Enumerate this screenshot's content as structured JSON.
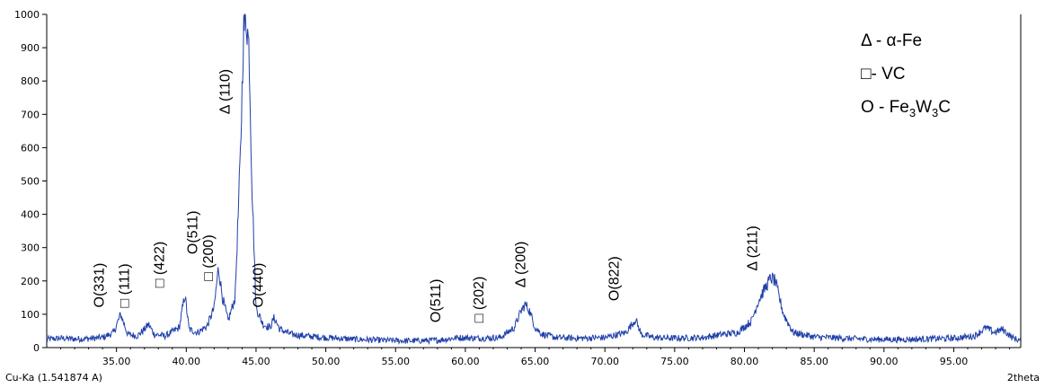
{
  "chart_data": {
    "type": "line",
    "xlabel": "2theta",
    "source_label": "Cu-Ka (1.541874 A)",
    "xlim": [
      30.0,
      99.8
    ],
    "ylim": [
      0,
      1000
    ],
    "grid": false,
    "line_color": "#1f3fa8",
    "x_ticks": [
      "35.00",
      "40.00",
      "45.00",
      "50.00",
      "55.00",
      "60.00",
      "65.00",
      "70.00",
      "75.00",
      "80.00",
      "85.00",
      "90.00",
      "95.00"
    ],
    "x_tick_values": [
      35,
      40,
      45,
      50,
      55,
      60,
      65,
      70,
      75,
      80,
      85,
      90,
      95
    ],
    "y_ticks": [
      "0",
      "100",
      "200",
      "300",
      "400",
      "500",
      "600",
      "700",
      "800",
      "900",
      "1000"
    ],
    "y_tick_values": [
      0,
      100,
      200,
      300,
      400,
      500,
      600,
      700,
      800,
      900,
      1000
    ],
    "series": [
      {
        "x": [
          30.0,
          31.0,
          32.0,
          33.0,
          34.0,
          34.8,
          35.3,
          35.8,
          36.5,
          37.0,
          37.3,
          37.7,
          38.5,
          39.5,
          39.9,
          40.2,
          40.8,
          41.5,
          42.0,
          42.3,
          42.6,
          43.0,
          43.5,
          43.9,
          44.1,
          44.3,
          44.5,
          44.7,
          45.0,
          45.5,
          46.0,
          46.3,
          46.7,
          47.5,
          48.5,
          50.0,
          52.0,
          54.0,
          56.0,
          58.0,
          59.5,
          61.0,
          62.5,
          63.5,
          64.0,
          64.3,
          64.6,
          65.0,
          65.5,
          66.5,
          68.0,
          70.0,
          71.5,
          72.2,
          72.6,
          73.5,
          75.0,
          77.0,
          78.5,
          79.5,
          80.5,
          81.0,
          81.5,
          81.9,
          82.2,
          82.8,
          83.5,
          85.0,
          87.0,
          89.0,
          91.0,
          93.0,
          95.0,
          96.5,
          97.3,
          97.9,
          98.5,
          99.2,
          99.8
        ],
        "y": [
          25,
          28,
          26,
          27,
          30,
          45,
          100,
          40,
          35,
          55,
          70,
          40,
          35,
          60,
          160,
          55,
          45,
          65,
          120,
          240,
          150,
          80,
          150,
          600,
          950,
          990,
          900,
          500,
          120,
          70,
          60,
          90,
          55,
          40,
          35,
          30,
          25,
          22,
          20,
          22,
          30,
          28,
          30,
          60,
          110,
          130,
          110,
          60,
          40,
          30,
          28,
          30,
          45,
          85,
          40,
          30,
          28,
          30,
          40,
          45,
          80,
          140,
          180,
          210,
          200,
          100,
          45,
          32,
          28,
          25,
          24,
          26,
          28,
          35,
          60,
          45,
          55,
          30,
          20
        ]
      }
    ],
    "annotations": [
      {
        "text": "Δ (110)",
        "x": 43.1,
        "y": 700
      },
      {
        "text": "O(331)",
        "x": 34.1,
        "y": 120
      },
      {
        "text": "□ (111)",
        "x": 35.9,
        "y": 120
      },
      {
        "text": "□ (422)",
        "x": 38.4,
        "y": 180
      },
      {
        "text": "O(511)",
        "x": 40.8,
        "y": 280
      },
      {
        "text": "□ (200)",
        "x": 41.9,
        "y": 200
      },
      {
        "text": "O(440)",
        "x": 45.5,
        "y": 120
      },
      {
        "text": "O(511)",
        "x": 58.2,
        "y": 75
      },
      {
        "text": "□ (202)",
        "x": 61.3,
        "y": 75
      },
      {
        "text": "Δ (200)",
        "x": 64.3,
        "y": 180
      },
      {
        "text": "O(822)",
        "x": 71.0,
        "y": 140
      },
      {
        "text": "Δ (211)",
        "x": 80.9,
        "y": 230
      }
    ],
    "legend": {
      "placement": "top-right",
      "entries": [
        "Δ - α-Fe",
        "□- VC"
      ],
      "entry3_prefix": "O - Fe",
      "entry3_sub1": "3",
      "entry3_mid": "W",
      "entry3_sub2": "3",
      "entry3_suffix": "C"
    }
  }
}
